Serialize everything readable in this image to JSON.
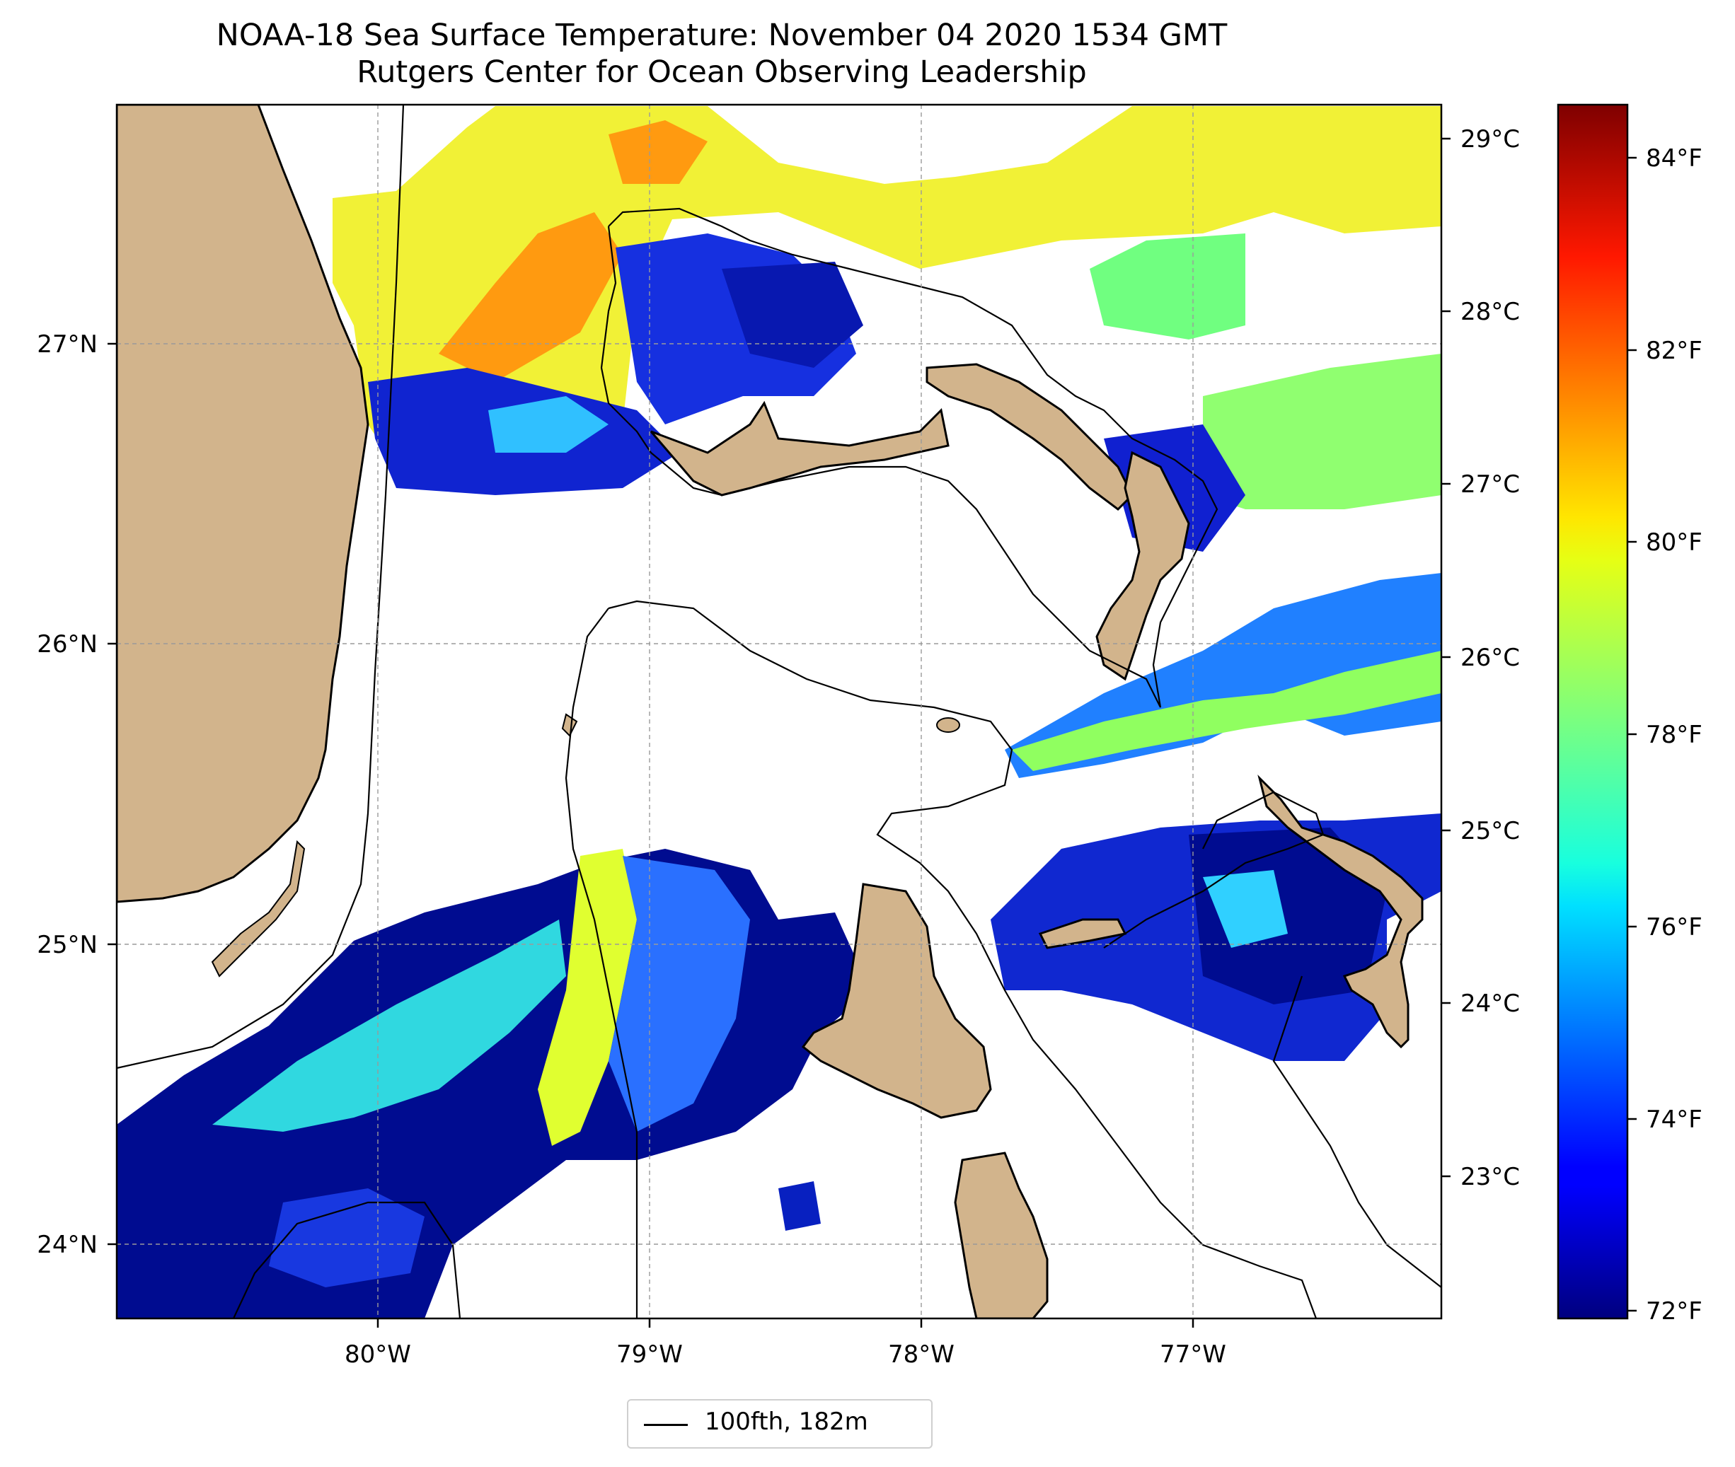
{
  "title": "NOAA-18 Sea Surface Temperature: November 04 2020 1534 GMT",
  "subtitle": "Rutgers Center for Ocean Observing Leadership",
  "map": {
    "lat_range": [
      23.75,
      27.8
    ],
    "lon_range": [
      -80.95,
      -76.1
    ],
    "lat_ticks": [
      "27°N",
      "26°N",
      "25°N",
      "24°N"
    ],
    "lon_ticks": [
      "80°W",
      "79°W",
      "78°W",
      "77°W"
    ],
    "grid": true,
    "land_color": "#d2b48c",
    "lake_color": "#9ab9e8"
  },
  "colorbar": {
    "colormap": "jet",
    "celsius_ticks": [
      "29°C",
      "28°C",
      "27°C",
      "26°C",
      "25°C",
      "24°C",
      "23°C"
    ],
    "fahrenheit_ticks": [
      "84°F",
      "82°F",
      "80°F",
      "78°F",
      "76°F",
      "74°F",
      "72°F"
    ],
    "range_f": [
      71.9,
      84.7
    ]
  },
  "legend": {
    "label": "100fth, 182m",
    "position": "bottom-center"
  }
}
